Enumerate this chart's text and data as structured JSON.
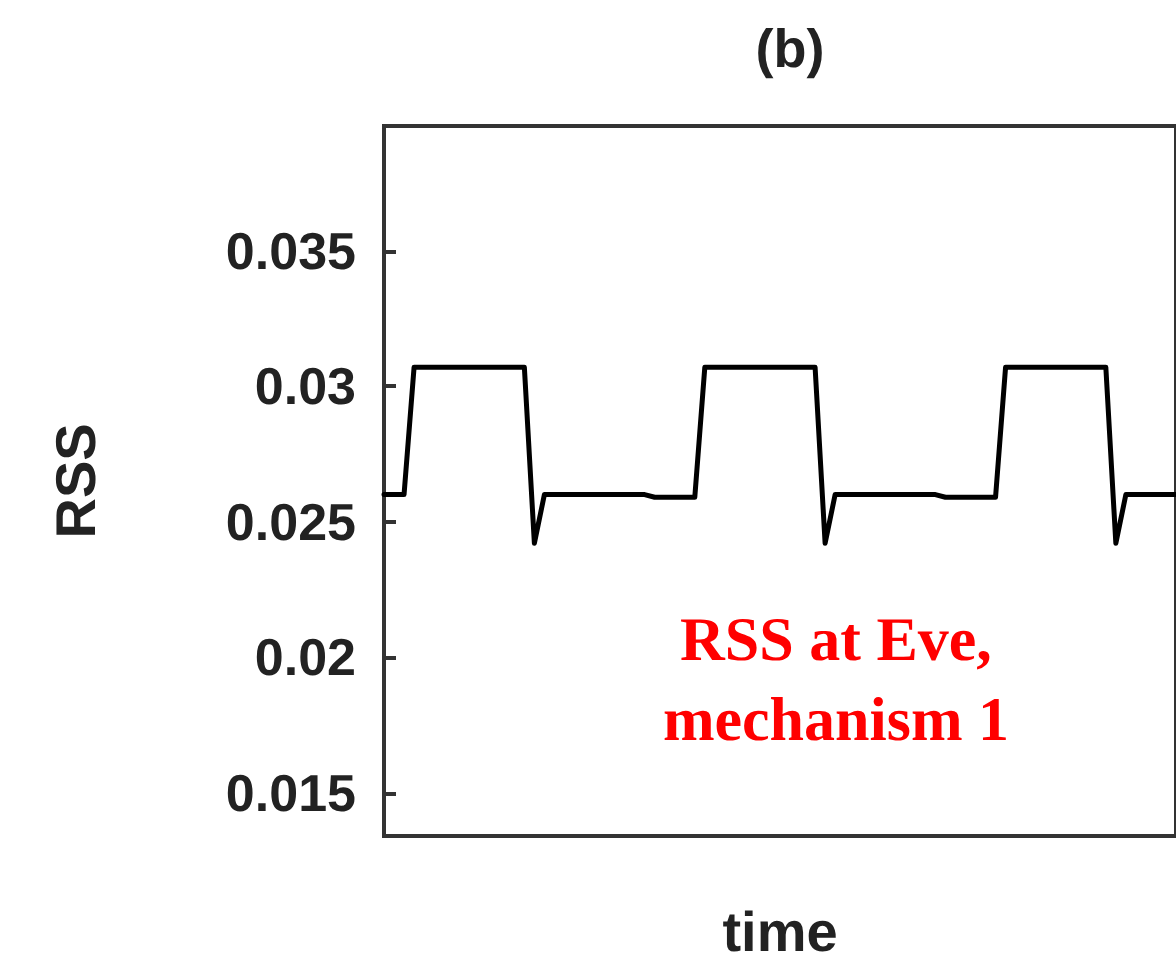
{
  "chart_data": {
    "type": "line",
    "title": "(b)",
    "xlabel": "time",
    "ylabel": "RSS",
    "annotations": [
      "RSS at Eve, mechanism 1"
    ],
    "categories": [
      null,
      null,
      null,
      null,
      null,
      null,
      null,
      null,
      null,
      null,
      null,
      null,
      null,
      null,
      null,
      null,
      null,
      null,
      null,
      null,
      null,
      null,
      null,
      null,
      null,
      null,
      null,
      null,
      null,
      null,
      null,
      null,
      null,
      null,
      null,
      null,
      null,
      null,
      null,
      null,
      null,
      null,
      null,
      null,
      null,
      null,
      null,
      null,
      null,
      null,
      null,
      null,
      null,
      null,
      null,
      null,
      null,
      null,
      null,
      null,
      null,
      null,
      null,
      null,
      null,
      null,
      null,
      null,
      null,
      null,
      null,
      null,
      null,
      null,
      null,
      null,
      null,
      null,
      null,
      null
    ],
    "series": [
      {
        "color": "#000000",
        "values": [
          0.026,
          0.026,
          0.026,
          0.0307,
          0.0307,
          0.0307,
          0.0307,
          0.0307,
          0.0307,
          0.0307,
          0.0307,
          0.0307,
          0.0307,
          0.0307,
          0.0307,
          0.0242,
          0.026,
          0.026,
          0.026,
          0.026,
          0.026,
          0.026,
          0.026,
          0.026,
          0.026,
          0.026,
          0.026,
          0.0259,
          0.0259,
          0.0259,
          0.0259,
          0.0259,
          0.0307,
          0.0307,
          0.0307,
          0.0307,
          0.0307,
          0.0307,
          0.0307,
          0.0307,
          0.0307,
          0.0307,
          0.0307,
          0.0307,
          0.0242,
          0.026,
          0.026,
          0.026,
          0.026,
          0.026,
          0.026,
          0.026,
          0.026,
          0.026,
          0.026,
          0.026,
          0.0259,
          0.0259,
          0.0259,
          0.0259,
          0.0259,
          0.0259,
          0.0307,
          0.0307,
          0.0307,
          0.0307,
          0.0307,
          0.0307,
          0.0307,
          0.0307,
          0.0307,
          0.0307,
          0.0307,
          0.0242,
          0.026,
          0.026,
          0.026,
          0.026,
          0.026,
          0.026
        ]
      }
    ],
    "ylim": [
      0.0134,
      0.0396
    ],
    "yticks": [
      0.015,
      0.02,
      0.025,
      0.03,
      0.035
    ],
    "tick_labels": "y",
    "grid": false,
    "line_style": "solid"
  }
}
